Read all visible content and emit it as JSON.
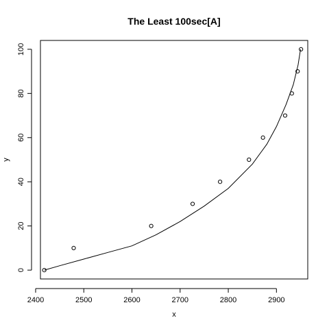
{
  "chart_data": {
    "type": "scatter",
    "title": "The Least 100sec[A]",
    "xlabel": "x",
    "ylabel": "y",
    "xlim": [
      2410,
      2965
    ],
    "ylim": [
      -4,
      104
    ],
    "xticks": [
      2400,
      2500,
      2600,
      2700,
      2800,
      2900
    ],
    "yticks": [
      0,
      20,
      40,
      60,
      80,
      100
    ],
    "grid": false,
    "legend": "none",
    "series": [
      {
        "type": "scatter",
        "marker": "open-circle",
        "x": [
          2418,
          2479,
          2640,
          2726,
          2783,
          2843,
          2872,
          2918,
          2932,
          2944,
          2951
        ],
        "y": [
          0,
          10,
          20,
          30,
          40,
          50,
          60,
          70,
          80,
          90,
          100
        ]
      },
      {
        "type": "line",
        "x": [
          2418,
          2450,
          2500,
          2550,
          2600,
          2650,
          2700,
          2750,
          2800,
          2850,
          2880,
          2900,
          2920,
          2935,
          2945,
          2950
        ],
        "y": [
          0,
          2,
          5,
          8,
          11,
          16,
          22,
          29,
          37,
          48,
          57,
          65,
          75,
          84,
          93,
          100
        ]
      }
    ],
    "colors": {
      "points": "#000000",
      "curve": "#000000",
      "axes": "#000000"
    }
  }
}
